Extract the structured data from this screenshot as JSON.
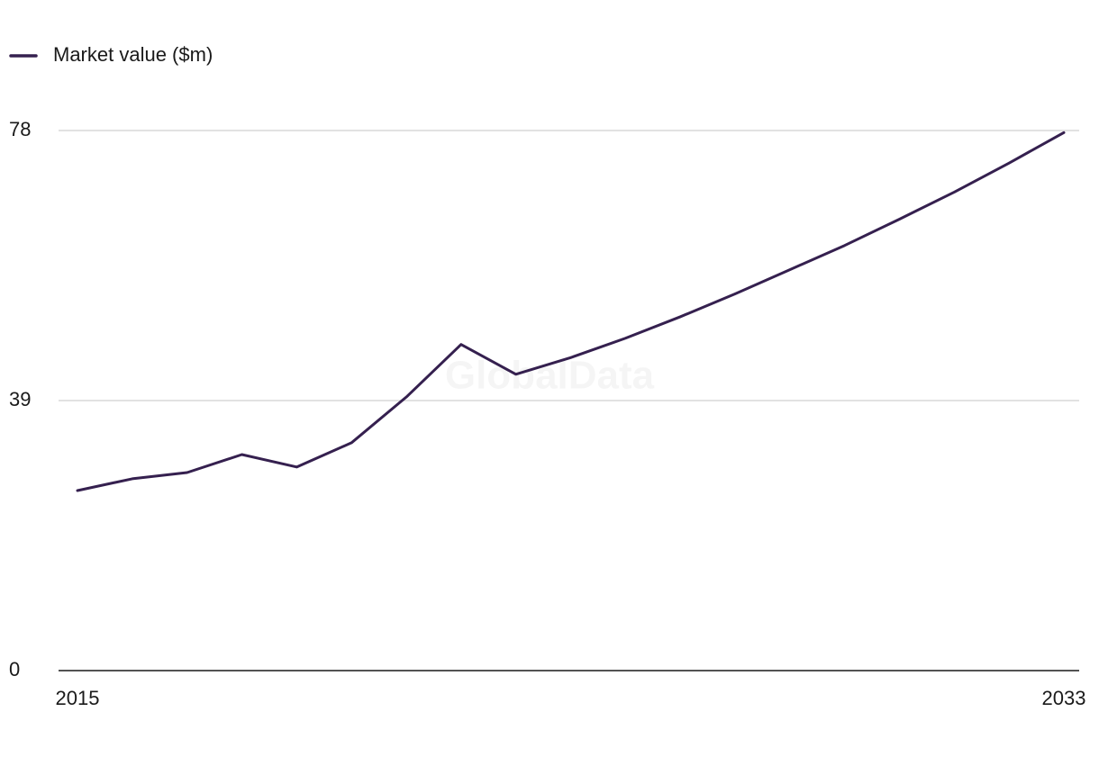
{
  "chart_data": {
    "type": "line",
    "watermark": "GlobalData",
    "x": [
      2015,
      2016,
      2017,
      2018,
      2019,
      2020,
      2021,
      2022,
      2023,
      2024,
      2025,
      2026,
      2027,
      2028,
      2029,
      2030,
      2031,
      2032,
      2033
    ],
    "series": [
      {
        "name": "Market value ($m)",
        "color": "#35204f",
        "values": [
          26.0,
          27.7,
          28.6,
          31.2,
          29.4,
          32.9,
          39.5,
          47.1,
          42.8,
          45.2,
          48.0,
          51.1,
          54.4,
          57.9,
          61.4,
          65.2,
          69.1,
          73.3,
          77.7
        ]
      }
    ],
    "xlim": [
      2015,
      2033
    ],
    "xticks": [
      2015,
      2033
    ],
    "ylim": [
      0,
      78
    ],
    "yticks": [
      0,
      39,
      78
    ],
    "grid": true,
    "legend": "top-left"
  }
}
